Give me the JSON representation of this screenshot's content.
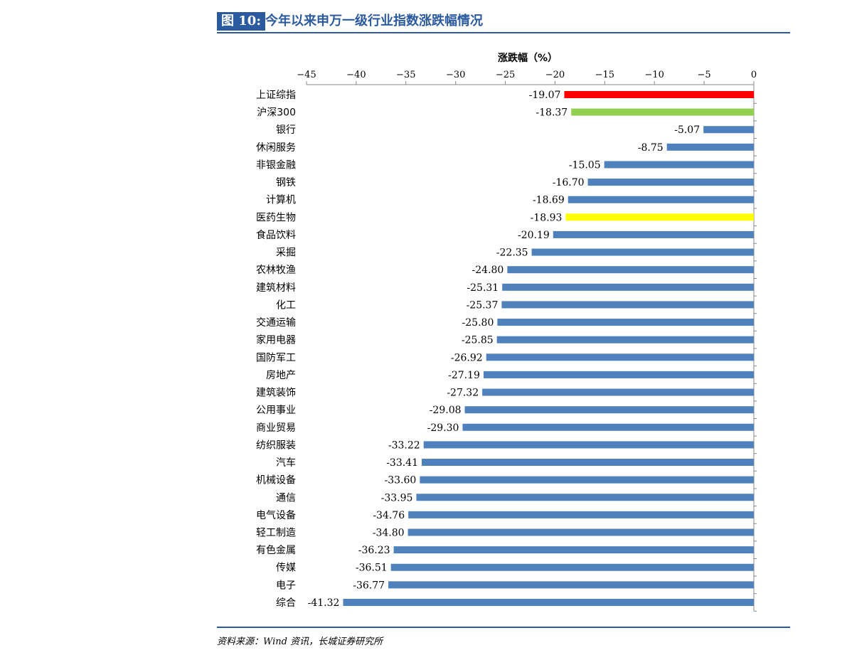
{
  "figure": {
    "label": "图 10:",
    "title": "今年以来申万一级行业指数涨跌幅情况",
    "source": "资料来源：Wind 资讯，长城证券研究所"
  },
  "chart_data": {
    "type": "bar",
    "orientation": "horizontal",
    "title": "",
    "xlabel": "涨跌幅（%）",
    "xaxis_position": "top",
    "xlim": [
      -45,
      0
    ],
    "xticks": [
      -45,
      -40,
      -35,
      -30,
      -25,
      -20,
      -15,
      -10,
      -5,
      0
    ],
    "grid": false,
    "legend": "none",
    "value_format": "%.2f",
    "default_color": "#4f81bd",
    "categories": [
      "上证综指",
      "沪深300",
      "银行",
      "休闲服务",
      "非银金融",
      "钢铁",
      "计算机",
      "医药生物",
      "食品饮料",
      "采掘",
      "农林牧渔",
      "建筑材料",
      "化工",
      "交通运输",
      "家用电器",
      "国防军工",
      "房地产",
      "建筑装饰",
      "公用事业",
      "商业贸易",
      "纺织服装",
      "汽车",
      "机械设备",
      "通信",
      "电气设备",
      "轻工制造",
      "有色金属",
      "传媒",
      "电子",
      "综合"
    ],
    "values": [
      -19.07,
      -18.37,
      -5.07,
      -8.75,
      -15.05,
      -16.7,
      -18.69,
      -18.93,
      -20.19,
      -22.35,
      -24.8,
      -25.31,
      -25.37,
      -25.8,
      -25.85,
      -26.92,
      -27.19,
      -27.32,
      -29.08,
      -29.3,
      -33.22,
      -33.41,
      -33.6,
      -33.95,
      -34.76,
      -34.8,
      -36.23,
      -36.51,
      -36.77,
      -41.32
    ],
    "data_labels": [
      "-19.07",
      "-18.37",
      "-5.07",
      "-8.75",
      "-15.05",
      "-16.70",
      "-18.69",
      "-18.93",
      "-20.19",
      "-22.35",
      "-24.80",
      "-25.31",
      "-25.37",
      "-25.80",
      "-25.85",
      "-26.92",
      "-27.19",
      "-27.32",
      "-29.08",
      "-29.30",
      "-33.22",
      "-33.41",
      "-33.60",
      "-33.95",
      "-34.76",
      "-34.80",
      "-36.23",
      "-36.51",
      "-36.77",
      "-41.32"
    ],
    "highlight_colors": {
      "上证综指": "#ff0000",
      "沪深300": "#92d050",
      "医药生物": "#ffff00"
    }
  }
}
